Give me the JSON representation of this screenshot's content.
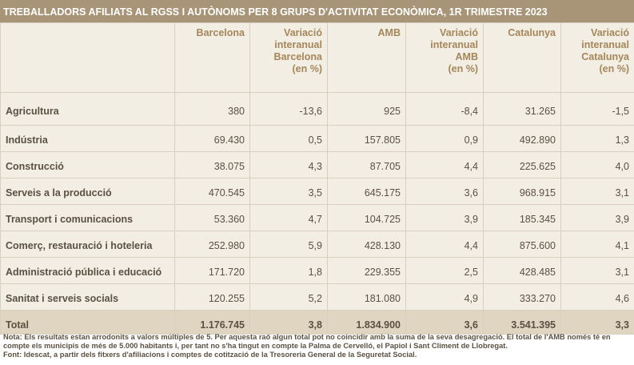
{
  "title": "TREBALLADORS AFILIATS AL RGSS I AUTÒNOMS PER 8 GRUPS D'ACTIVITAT ECONÒMICA, 1R TRIMESTRE 2023",
  "table": {
    "headers": [
      "",
      "Barcelona",
      "Variació\ninteranual\nBarcelona\n(en %)",
      "AMB",
      "Variació\ninteranual\nAMB\n(en %)",
      "Catalunya",
      "Variació\ninteranual\nCatalunya\n(en %)"
    ],
    "rows": [
      [
        "Agricultura",
        "380",
        "-13,6",
        "925",
        "-8,4",
        "31.265",
        "-1,5"
      ],
      [
        "Indústria",
        "69.430",
        "0,5",
        "157.805",
        "0,9",
        "492.890",
        "1,3"
      ],
      [
        "Construcció",
        "38.075",
        "4,3",
        "87.705",
        "4,4",
        "225.625",
        "4,0"
      ],
      [
        "Serveis a la producció",
        "470.545",
        "3,5",
        "645.175",
        "3,6",
        "968.915",
        "3,1"
      ],
      [
        "Transport i comunicacions",
        "53.360",
        "4,7",
        "104.725",
        "3,9",
        "185.345",
        "3,9"
      ],
      [
        "Comerç, restauració i hoteleria",
        "252.980",
        "5,9",
        "428.130",
        "4,4",
        "875.600",
        "4,1"
      ],
      [
        "Administració pública i educació",
        "171.720",
        "1,8",
        "229.355",
        "2,5",
        "428.485",
        "3,1"
      ],
      [
        "Sanitat i serveis socials",
        "120.255",
        "5,2",
        "181.080",
        "4,9",
        "333.270",
        "4,6"
      ]
    ],
    "total": [
      "Total",
      "1.176.745",
      "3,8",
      "1.834.900",
      "3,6",
      "3.541.395",
      "3,3"
    ]
  },
  "notes": {
    "nota": "Nota: Els resultats estan arrodonits a valors múltiples de 5. Per aquesta raó algun total pot no coincidir amb la suma de la seva desagregació. El total de l'AMB només té en compte els municipis de més de 5.000 habitants i, per tant no s'ha tingut en compte la Palma de Cervelló, el Papiol i Sant Climent de Llobregat.",
    "font": "Font: Idescat, a partir dels fitxers d'afiliacions i comptes de cotització de la Tresoreria General de la Seguretat Social."
  }
}
